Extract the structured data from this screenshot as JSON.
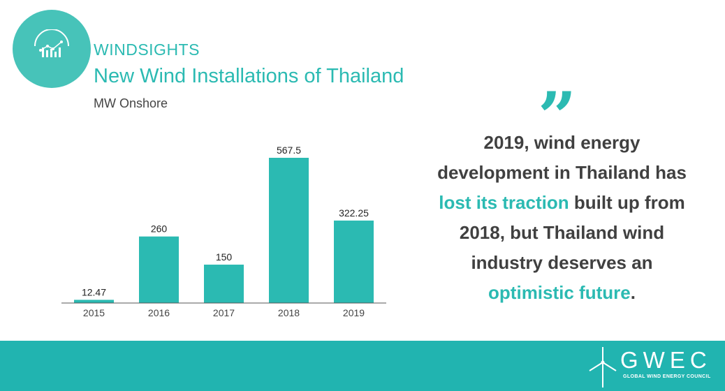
{
  "header": {
    "brand": "WINDSIGHTS",
    "title": "New Wind Installations of Thailand",
    "subtitle": "MW Onshore"
  },
  "chart_data": {
    "type": "bar",
    "categories": [
      "2015",
      "2016",
      "2017",
      "2018",
      "2019"
    ],
    "values": [
      12.47,
      260,
      150,
      567.5,
      322.25
    ],
    "value_labels": [
      "12.47",
      "260",
      "150",
      "567.5",
      "322.25"
    ],
    "title": "New Wind Installations of Thailand",
    "ylabel": "MW Onshore",
    "ylim": [
      0,
      567.5
    ],
    "grid": false,
    "color": "#2bbab2"
  },
  "quote": {
    "mark": "”",
    "part1": "2019, wind energy development in Thailand has ",
    "highlight1": "lost its traction",
    "part2": " built up from 2018, but Thailand wind industry deserves an ",
    "highlight2": "optimistic future",
    "part3": "."
  },
  "footer": {
    "logo_text": "GWEC",
    "logo_subtext": "GLOBAL WIND ENERGY COUNCIL",
    "color": "#21b4b0"
  }
}
